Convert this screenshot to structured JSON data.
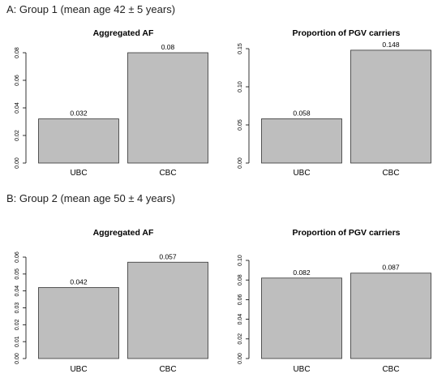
{
  "groups": [
    {
      "title": "A: Group 1 (mean age 42 ± 5 years)"
    },
    {
      "title": "B: Group 2 (mean age 50 ± 4 years)"
    }
  ],
  "chart_data": [
    {
      "type": "bar",
      "title": "Aggregated AF",
      "categories": [
        "UBC",
        "CBC"
      ],
      "values": [
        0.032,
        0.08
      ],
      "value_labels": [
        "0.032",
        "0.08"
      ],
      "yticks": [
        "0.00",
        "0.02",
        "0.04",
        "0.06",
        "0.08"
      ],
      "ylim": [
        0,
        0.08
      ],
      "bar_color": "#bebebe"
    },
    {
      "type": "bar",
      "title": "Proportion of PGV carriers",
      "categories": [
        "UBC",
        "CBC"
      ],
      "values": [
        0.058,
        0.148
      ],
      "value_labels": [
        "0.058",
        "0.148"
      ],
      "yticks": [
        "0.00",
        "0.05",
        "0.10",
        "0.15"
      ],
      "ylim": [
        0,
        0.15
      ],
      "bar_color": "#bebebe"
    },
    {
      "type": "bar",
      "title": "Aggregated AF",
      "categories": [
        "UBC",
        "CBC"
      ],
      "values": [
        0.042,
        0.057
      ],
      "value_labels": [
        "0.042",
        "0.057"
      ],
      "yticks": [
        "0.00",
        "0.01",
        "0.02",
        "0.03",
        "0.04",
        "0.05",
        "0.06"
      ],
      "ylim": [
        0,
        0.06
      ],
      "bar_color": "#bebebe"
    },
    {
      "type": "bar",
      "title": "Proportion of PGV carriers",
      "categories": [
        "UBC",
        "CBC"
      ],
      "values": [
        0.082,
        0.087
      ],
      "value_labels": [
        "0.082",
        "0.087"
      ],
      "yticks": [
        "0.00",
        "0.02",
        "0.04",
        "0.06",
        "0.08",
        "0.10"
      ],
      "ylim": [
        0,
        0.1
      ],
      "bar_color": "#bebebe"
    }
  ]
}
